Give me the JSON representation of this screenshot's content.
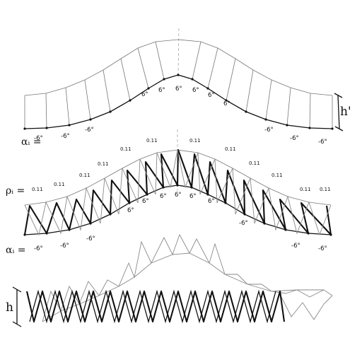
{
  "labels": {
    "alpha_top": "αᵢ =",
    "rho": "ρᵢ =",
    "alpha_bottom": "αᵢ =",
    "h_prime": "h'",
    "h": "h"
  },
  "top_angles": [
    "-6°",
    "-6°",
    "-6°",
    "6°",
    "6°",
    "6°",
    "6°",
    "6°",
    "6°",
    "-6°",
    "-6°",
    "-6°"
  ],
  "rho_values": [
    "0.11",
    "0.11",
    "0.11",
    "0.11",
    "0.11",
    "0.11",
    "0.11",
    "0.11",
    "0.11",
    "0.11",
    "0.11",
    "0.11"
  ],
  "mid_angles": [
    "-6°",
    "-6°",
    "-6°",
    "6°",
    "6°",
    "6°",
    "6°",
    "6°",
    "6°",
    "-6°",
    "-6°",
    "-6°"
  ]
}
